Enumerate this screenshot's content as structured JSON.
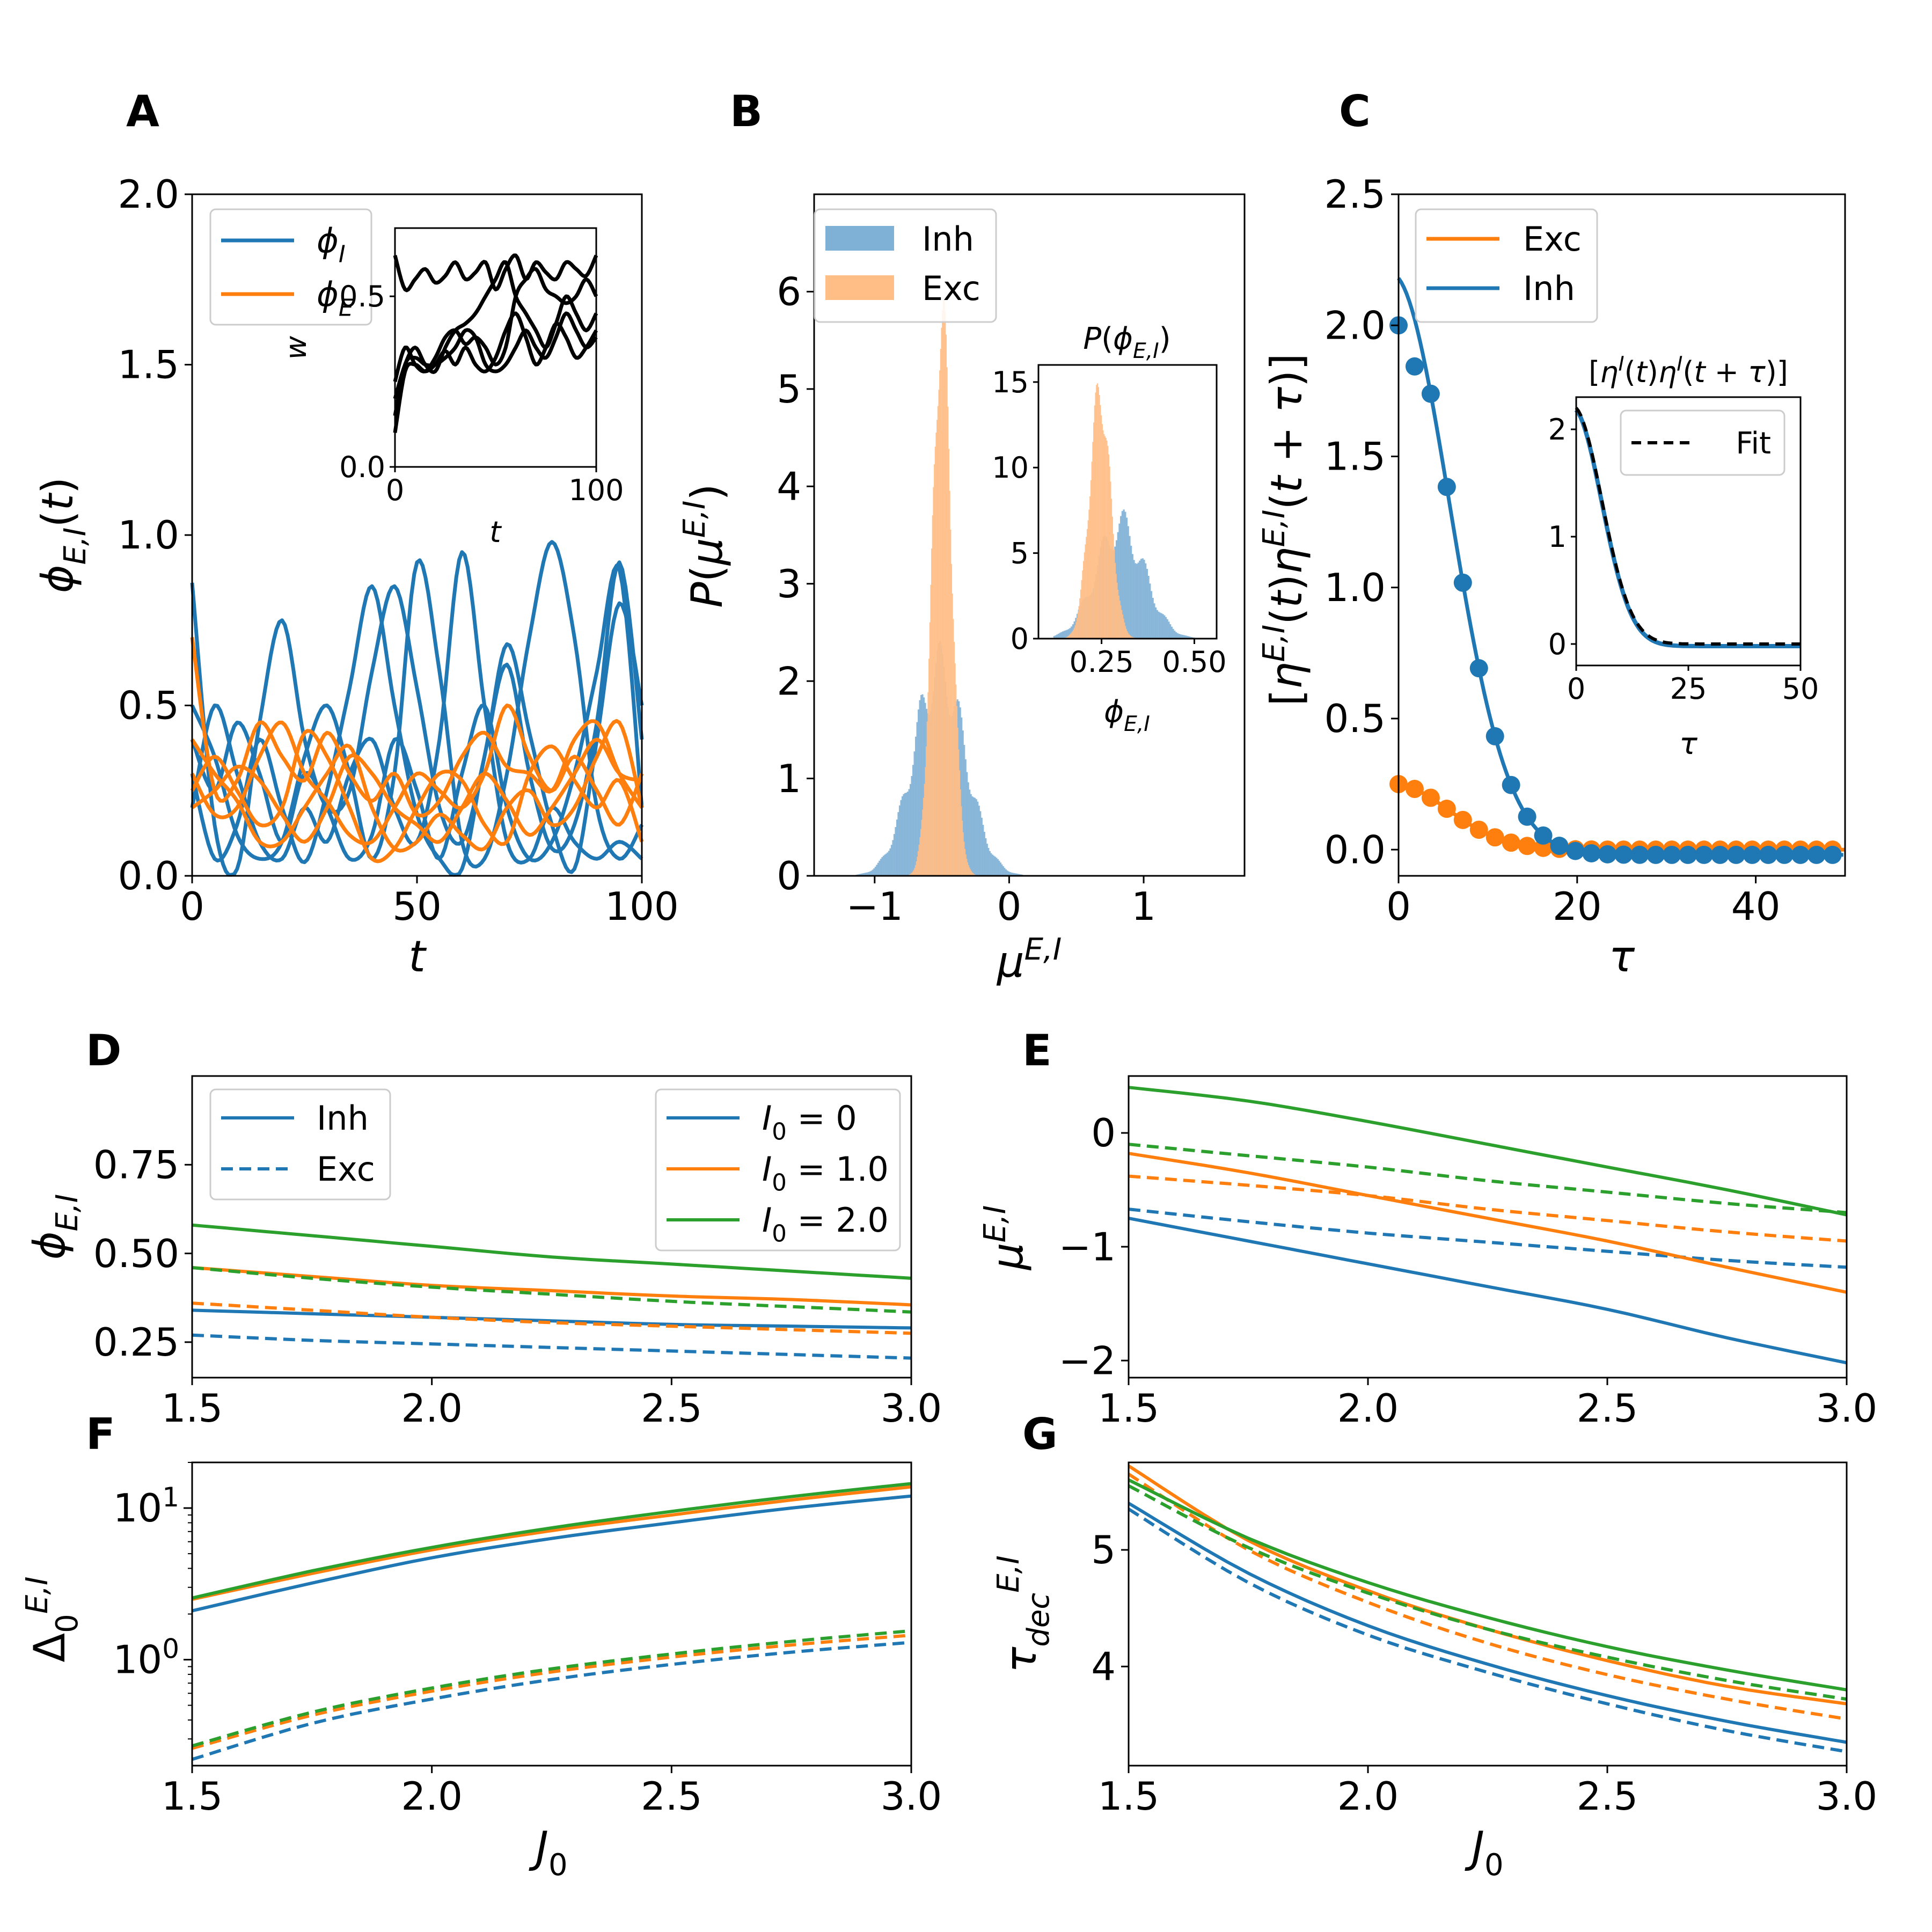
{
  "colors": {
    "blue": "#1f77b4",
    "orange": "#ff7f0e",
    "green": "#2ca02c",
    "black": "#000000",
    "hist_blue": "#7fb0d6",
    "hist_orange": "#ffbe86"
  },
  "panel_labels": [
    "A",
    "B",
    "C",
    "D",
    "E",
    "F",
    "G"
  ],
  "chart_data": [
    {
      "id": "A",
      "type": "line",
      "xlabel": "t",
      "ylabel": "ϕ_{E,I}(t)",
      "xlim": [
        0,
        100
      ],
      "ylim": [
        0,
        2.0
      ],
      "xticks": [
        "0",
        "50",
        "100"
      ],
      "yticks": [
        "0.0",
        "0.5",
        "1.0",
        "1.5",
        "2.0"
      ],
      "legend": [
        {
          "label": "ϕ_I",
          "color": "blue"
        },
        {
          "label": "ϕ_E",
          "color": "orange"
        }
      ],
      "series": [
        {
          "name": "ϕ_I",
          "color": "blue",
          "y": [
            0.86,
            0.15,
            0.02,
            0.45,
            0.75,
            0.4,
            0.2,
            0.25,
            0.6,
            0.85,
            0.55,
            0.2,
            0.1,
            0.35,
            0.68,
            0.42,
            0.15,
            0.02,
            0.4,
            0.8,
            0.5
          ]
        },
        {
          "name": "ϕ_I",
          "color": "blue",
          "y": [
            0.5,
            0.35,
            0.12,
            0.05,
            0.1,
            0.35,
            0.5,
            0.3,
            0.05,
            0.3,
            0.92,
            0.6,
            0.1,
            0.05,
            0.3,
            0.7,
            0.98,
            0.7,
            0.2,
            0.05,
            0.15
          ]
        },
        {
          "name": "ϕ_I",
          "color": "blue",
          "y": [
            0.3,
            0.05,
            0.15,
            0.4,
            0.2,
            0.04,
            0.25,
            0.55,
            0.85,
            0.5,
            0.18,
            0.05,
            0.02,
            0.35,
            0.62,
            0.3,
            0.08,
            0.15,
            0.45,
            0.92,
            0.4
          ]
        },
        {
          "name": "ϕ_I",
          "color": "blue",
          "y": [
            0.4,
            0.25,
            0.45,
            0.3,
            0.1,
            0.3,
            0.2,
            0.05,
            0.12,
            0.4,
            0.25,
            0.05,
            0.3,
            0.5,
            0.2,
            0.05,
            0.1,
            0.3,
            0.6,
            0.9,
            0.2
          ]
        },
        {
          "name": "ϕ_I",
          "color": "blue",
          "y": [
            0.2,
            0.5,
            0.3,
            0.1,
            0.05,
            0.2,
            0.1,
            0.3,
            0.4,
            0.2,
            0.1,
            0.4,
            0.95,
            0.5,
            0.1,
            0.05,
            0.2,
            0.1,
            0.05,
            0.1,
            0.05
          ]
        },
        {
          "name": "ϕ_E",
          "color": "orange",
          "y": [
            0.7,
            0.25,
            0.28,
            0.45,
            0.35,
            0.28,
            0.42,
            0.3,
            0.22,
            0.3,
            0.18,
            0.22,
            0.35,
            0.42,
            0.32,
            0.3,
            0.25,
            0.4,
            0.45,
            0.3,
            0.2
          ]
        },
        {
          "name": "ϕ_E",
          "color": "orange",
          "y": [
            0.3,
            0.18,
            0.2,
            0.35,
            0.45,
            0.3,
            0.22,
            0.12,
            0.1,
            0.2,
            0.3,
            0.25,
            0.2,
            0.3,
            0.5,
            0.35,
            0.25,
            0.35,
            0.25,
            0.15,
            0.3
          ]
        },
        {
          "name": "ϕ_E",
          "color": "orange",
          "y": [
            0.25,
            0.35,
            0.25,
            0.15,
            0.2,
            0.42,
            0.35,
            0.2,
            0.05,
            0.08,
            0.2,
            0.3,
            0.28,
            0.15,
            0.1,
            0.3,
            0.38,
            0.28,
            0.2,
            0.28,
            0.1
          ]
        },
        {
          "name": "ϕ_E",
          "color": "orange",
          "y": [
            0.4,
            0.3,
            0.22,
            0.1,
            0.1,
            0.2,
            0.3,
            0.38,
            0.2,
            0.08,
            0.1,
            0.18,
            0.12,
            0.08,
            0.2,
            0.25,
            0.15,
            0.2,
            0.35,
            0.45,
            0.2
          ]
        },
        {
          "name": "ϕ_E",
          "color": "orange",
          "y": [
            0.2,
            0.25,
            0.32,
            0.28,
            0.18,
            0.1,
            0.2,
            0.35,
            0.3,
            0.2,
            0.15,
            0.1,
            0.2,
            0.3,
            0.22,
            0.12,
            0.2,
            0.3,
            0.4,
            0.3,
            0.28
          ]
        }
      ],
      "inset": {
        "xlabel": "t",
        "ylabel": "w",
        "xlim": [
          0,
          100
        ],
        "ylim": [
          0,
          0.7
        ],
        "xticks": [
          "0",
          "100"
        ],
        "yticks": [
          "0.0",
          "0.5"
        ],
        "series": [
          {
            "y": [
              0.62,
              0.52,
              0.55,
              0.58,
              0.54,
              0.56,
              0.6,
              0.55,
              0.57,
              0.6,
              0.52,
              0.58,
              0.62,
              0.55,
              0.6,
              0.57,
              0.55,
              0.6,
              0.58,
              0.56,
              0.62
            ]
          },
          {
            "y": [
              0.2,
              0.3,
              0.35,
              0.3,
              0.28,
              0.35,
              0.4,
              0.42,
              0.45,
              0.5,
              0.55,
              0.6,
              0.5,
              0.45,
              0.4,
              0.35,
              0.42,
              0.5,
              0.45,
              0.4,
              0.45
            ]
          },
          {
            "y": [
              0.25,
              0.35,
              0.3,
              0.28,
              0.32,
              0.38,
              0.4,
              0.36,
              0.38,
              0.35,
              0.3,
              0.35,
              0.5,
              0.55,
              0.58,
              0.52,
              0.5,
              0.48,
              0.5,
              0.55,
              0.5
            ]
          },
          {
            "y": [
              0.15,
              0.3,
              0.32,
              0.3,
              0.3,
              0.32,
              0.35,
              0.4,
              0.38,
              0.3,
              0.28,
              0.3,
              0.35,
              0.4,
              0.35,
              0.32,
              0.38,
              0.45,
              0.4,
              0.35,
              0.38
            ]
          },
          {
            "y": [
              0.1,
              0.28,
              0.3,
              0.28,
              0.3,
              0.34,
              0.3,
              0.35,
              0.3,
              0.28,
              0.32,
              0.4,
              0.45,
              0.38,
              0.3,
              0.35,
              0.42,
              0.38,
              0.32,
              0.35,
              0.4
            ]
          }
        ]
      }
    },
    {
      "id": "B",
      "type": "histogram",
      "xlabel": "μ^{E,I}",
      "ylabel": "P(μ^{E,I})",
      "xlim": [
        -1.45,
        1.75
      ],
      "ylim": [
        0,
        7
      ],
      "xticks": [
        "−1",
        "0",
        "1"
      ],
      "yticks": [
        "0",
        "1",
        "2",
        "3",
        "4",
        "5",
        "6"
      ],
      "legend": [
        {
          "label": "Inh",
          "color": "hist_blue"
        },
        {
          "label": "Exc",
          "color": "hist_orange"
        }
      ],
      "series": [
        {
          "name": "Inh",
          "center": -0.52,
          "sd": 0.19,
          "peak": 2.1
        },
        {
          "name": "Exc",
          "center": -0.5,
          "sd": 0.07,
          "peak": 5.7
        }
      ],
      "inset": {
        "title": "P(ϕ_{E,I})",
        "xlabel": "ϕ_{E,I}",
        "xlim": [
          0.08,
          0.56
        ],
        "ylim": [
          0,
          16
        ],
        "xticks": [
          "0.25",
          "0.50"
        ],
        "yticks": [
          "0",
          "5",
          "10",
          "15"
        ],
        "series": [
          {
            "name": "Inh",
            "center": 0.3,
            "sd": 0.065,
            "peak": 6.5
          },
          {
            "name": "Exc",
            "center": 0.245,
            "sd": 0.028,
            "peak": 14.2
          }
        ]
      }
    },
    {
      "id": "C",
      "type": "line",
      "xlabel": "τ",
      "ylabel": "[η^{E,I}(t)η^{E,I}(t+τ)]",
      "xlim": [
        0,
        50
      ],
      "ylim": [
        -0.1,
        2.5
      ],
      "xticks": [
        "0",
        "20",
        "40"
      ],
      "yticks": [
        "0.0",
        "0.5",
        "1.0",
        "1.5",
        "2.0",
        "2.5"
      ],
      "legend": [
        {
          "label": "Exc",
          "color": "orange"
        },
        {
          "label": "Inh",
          "color": "blue"
        }
      ],
      "series": [
        {
          "name": "Inh",
          "amp": 2.2,
          "tau": 6.2,
          "offset": -0.02,
          "color": "blue"
        },
        {
          "name": "Exc",
          "amp": 0.25,
          "tau": 6.0,
          "offset": 0.0,
          "color": "orange"
        }
      ],
      "inset": {
        "title": "[η^I(t)η^I(t+τ)]",
        "xlabel": "τ",
        "xlim": [
          0,
          50
        ],
        "ylim": [
          -0.2,
          2.3
        ],
        "xticks": [
          "0",
          "25",
          "50"
        ],
        "yticks": [
          "0",
          "1",
          "2"
        ],
        "legend": [
          {
            "label": "Fit"
          }
        ]
      }
    },
    {
      "id": "D",
      "type": "line",
      "ylabel": "ϕ_{E,I}",
      "xlim": [
        1.5,
        3.0
      ],
      "ylim": [
        0.15,
        1.0
      ],
      "xticks": [
        "1.5",
        "2.0",
        "2.5",
        "3.0"
      ],
      "yticks": [
        "0.25",
        "0.50",
        "0.75"
      ],
      "x": [
        1.5,
        1.75,
        2.0,
        2.25,
        2.5,
        2.75,
        3.0
      ],
      "legend1": [
        {
          "label": "Inh",
          "style": "solid"
        },
        {
          "label": "Exc",
          "style": "dashed"
        }
      ],
      "legend2": [
        {
          "label": "I_0 = 0",
          "color": "blue"
        },
        {
          "label": "I_0 = 1.0",
          "color": "orange"
        },
        {
          "label": "I_0 = 2.0",
          "color": "green"
        }
      ],
      "series": [
        {
          "color": "blue",
          "style": "solid",
          "y": [
            0.34,
            0.33,
            0.32,
            0.31,
            0.3,
            0.295,
            0.29
          ]
        },
        {
          "color": "blue",
          "style": "dashed",
          "y": [
            0.27,
            0.255,
            0.245,
            0.235,
            0.225,
            0.215,
            0.205
          ]
        },
        {
          "color": "orange",
          "style": "solid",
          "y": [
            0.46,
            0.435,
            0.41,
            0.395,
            0.38,
            0.37,
            0.355
          ]
        },
        {
          "color": "orange",
          "style": "dashed",
          "y": [
            0.36,
            0.34,
            0.32,
            0.305,
            0.295,
            0.285,
            0.275
          ]
        },
        {
          "color": "green",
          "style": "solid",
          "y": [
            0.58,
            0.55,
            0.52,
            0.49,
            0.47,
            0.45,
            0.43
          ]
        },
        {
          "color": "green",
          "style": "dashed",
          "y": [
            0.46,
            0.43,
            0.405,
            0.385,
            0.365,
            0.35,
            0.335
          ]
        }
      ]
    },
    {
      "id": "E",
      "type": "line",
      "ylabel": "μ^{E,I}",
      "xlim": [
        1.5,
        3.0
      ],
      "ylim": [
        -2.15,
        0.5
      ],
      "xticks": [
        "1.5",
        "2.0",
        "2.5",
        "3.0"
      ],
      "yticks": [
        "−2",
        "−1",
        "0"
      ],
      "x": [
        1.5,
        1.75,
        2.0,
        2.25,
        2.5,
        2.75,
        3.0
      ],
      "series": [
        {
          "color": "blue",
          "style": "solid",
          "y": [
            -0.75,
            -0.95,
            -1.15,
            -1.35,
            -1.55,
            -1.8,
            -2.02
          ]
        },
        {
          "color": "blue",
          "style": "dashed",
          "y": [
            -0.67,
            -0.78,
            -0.88,
            -0.96,
            -1.04,
            -1.12,
            -1.18
          ]
        },
        {
          "color": "orange",
          "style": "solid",
          "y": [
            -0.18,
            -0.35,
            -0.55,
            -0.75,
            -0.95,
            -1.18,
            -1.4
          ]
        },
        {
          "color": "orange",
          "style": "dashed",
          "y": [
            -0.38,
            -0.46,
            -0.55,
            -0.67,
            -0.77,
            -0.87,
            -0.95
          ]
        },
        {
          "color": "green",
          "style": "solid",
          "y": [
            0.4,
            0.28,
            0.1,
            -0.1,
            -0.3,
            -0.5,
            -0.72
          ]
        },
        {
          "color": "green",
          "style": "dashed",
          "y": [
            -0.1,
            -0.2,
            -0.3,
            -0.42,
            -0.52,
            -0.62,
            -0.7
          ]
        }
      ]
    },
    {
      "id": "F",
      "type": "line",
      "ylabel": "Δ_0^{E,I}",
      "xlabel": "J_0",
      "xlim": [
        1.5,
        3.0
      ],
      "yscale": "log",
      "ylim": [
        0.2,
        20
      ],
      "xticks": [
        "1.5",
        "2.0",
        "2.5",
        "3.0"
      ],
      "yticks": [
        "10^0",
        "10^1"
      ],
      "x": [
        1.5,
        1.75,
        2.0,
        2.25,
        2.5,
        2.75,
        3.0
      ],
      "series": [
        {
          "color": "blue",
          "style": "solid",
          "y": [
            2.1,
            3.2,
            4.7,
            6.3,
            8.0,
            10.0,
            12.0
          ]
        },
        {
          "color": "orange",
          "style": "solid",
          "y": [
            2.5,
            3.7,
            5.3,
            7.1,
            9.0,
            11.3,
            13.8
          ]
        },
        {
          "color": "green",
          "style": "solid",
          "y": [
            2.55,
            3.85,
            5.5,
            7.4,
            9.5,
            11.9,
            14.5
          ]
        },
        {
          "color": "blue",
          "style": "dashed",
          "y": [
            0.22,
            0.38,
            0.55,
            0.74,
            0.93,
            1.12,
            1.3
          ]
        },
        {
          "color": "orange",
          "style": "dashed",
          "y": [
            0.26,
            0.43,
            0.62,
            0.83,
            1.04,
            1.25,
            1.45
          ]
        },
        {
          "color": "green",
          "style": "dashed",
          "y": [
            0.27,
            0.45,
            0.65,
            0.87,
            1.09,
            1.32,
            1.55
          ]
        }
      ]
    },
    {
      "id": "G",
      "type": "line",
      "ylabel": "τ_{dec}^{E,I}",
      "xlabel": "J_0",
      "xlim": [
        1.5,
        3.0
      ],
      "ylim": [
        3.15,
        5.75
      ],
      "xticks": [
        "1.5",
        "2.0",
        "2.5",
        "3.0"
      ],
      "yticks": [
        "4",
        "5"
      ],
      "x": [
        1.5,
        1.75,
        2.0,
        2.25,
        2.5,
        2.75,
        3.0
      ],
      "series": [
        {
          "color": "blue",
          "style": "solid",
          "y": [
            5.4,
            4.8,
            4.35,
            4.02,
            3.75,
            3.53,
            3.35
          ]
        },
        {
          "color": "blue",
          "style": "dashed",
          "y": [
            5.35,
            4.72,
            4.27,
            3.95,
            3.68,
            3.45,
            3.27
          ]
        },
        {
          "color": "orange",
          "style": "solid",
          "y": [
            5.72,
            5.08,
            4.65,
            4.32,
            4.05,
            3.83,
            3.68
          ]
        },
        {
          "color": "orange",
          "style": "dashed",
          "y": [
            5.65,
            5.0,
            4.55,
            4.2,
            3.93,
            3.72,
            3.55
          ]
        },
        {
          "color": "green",
          "style": "solid",
          "y": [
            5.6,
            5.1,
            4.72,
            4.42,
            4.17,
            3.97,
            3.8
          ]
        },
        {
          "color": "green",
          "style": "dashed",
          "y": [
            5.55,
            5.02,
            4.63,
            4.32,
            4.08,
            3.88,
            3.72
          ]
        }
      ]
    }
  ]
}
